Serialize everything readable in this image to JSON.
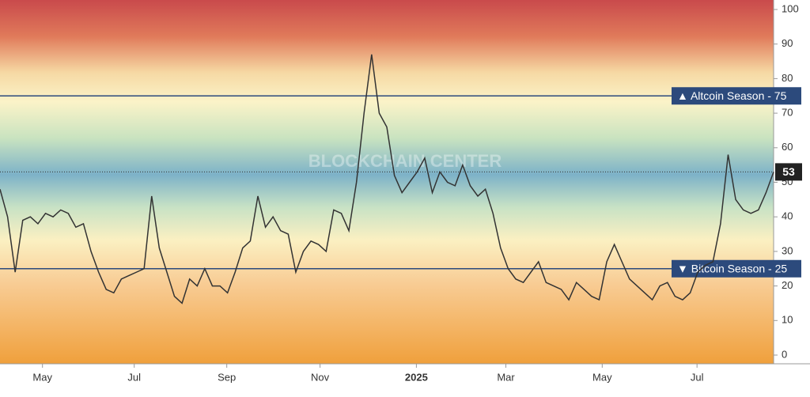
{
  "chart_data": {
    "type": "line",
    "watermark": "BLOCKCHAIN CENTER",
    "series": [
      {
        "color": "#333333",
        "values": [
          48,
          40,
          24,
          39,
          40,
          38,
          41,
          40,
          42,
          41,
          37,
          38,
          30,
          24,
          19,
          18,
          22,
          23,
          24,
          25,
          46,
          31,
          24,
          17,
          15,
          22,
          20,
          25,
          20,
          20,
          18,
          24,
          31,
          33,
          46,
          37,
          40,
          36,
          35,
          24,
          30,
          33,
          32,
          30,
          42,
          41,
          36,
          50,
          70,
          87,
          70,
          66,
          52,
          47,
          50,
          53,
          57,
          47,
          53,
          50,
          49,
          55,
          49,
          46,
          48,
          41,
          31,
          25,
          22,
          21,
          24,
          27,
          21,
          20,
          19,
          16,
          21,
          19,
          17,
          16,
          27,
          32,
          27,
          22,
          20,
          18,
          16,
          20,
          21,
          17,
          16,
          18,
          24,
          26,
          27,
          38,
          58,
          45,
          42,
          41,
          42,
          47,
          53
        ]
      }
    ],
    "xlim": [
      0,
      102
    ],
    "xticks": [
      {
        "value": 5.6,
        "label": "May"
      },
      {
        "value": 17.7,
        "label": "Jul"
      },
      {
        "value": 29.9,
        "label": "Sep"
      },
      {
        "value": 42.2,
        "label": "Nov"
      },
      {
        "value": 54.9,
        "label": "2025"
      },
      {
        "value": 66.7,
        "label": "Mar"
      },
      {
        "value": 79.4,
        "label": "May"
      },
      {
        "value": 91.9,
        "label": "Jul"
      }
    ],
    "ylim": [
      0,
      100
    ],
    "yticks": [
      0,
      10,
      20,
      30,
      40,
      50,
      60,
      70,
      80,
      90,
      100
    ],
    "thresholds": [
      {
        "value": 75,
        "label": "▲ Altcoin Season - 75",
        "color": "#2c4a7c"
      },
      {
        "value": 25,
        "label": "▼ Bitcoin Season - 25",
        "color": "#2c4a7c"
      }
    ],
    "current": 53
  }
}
